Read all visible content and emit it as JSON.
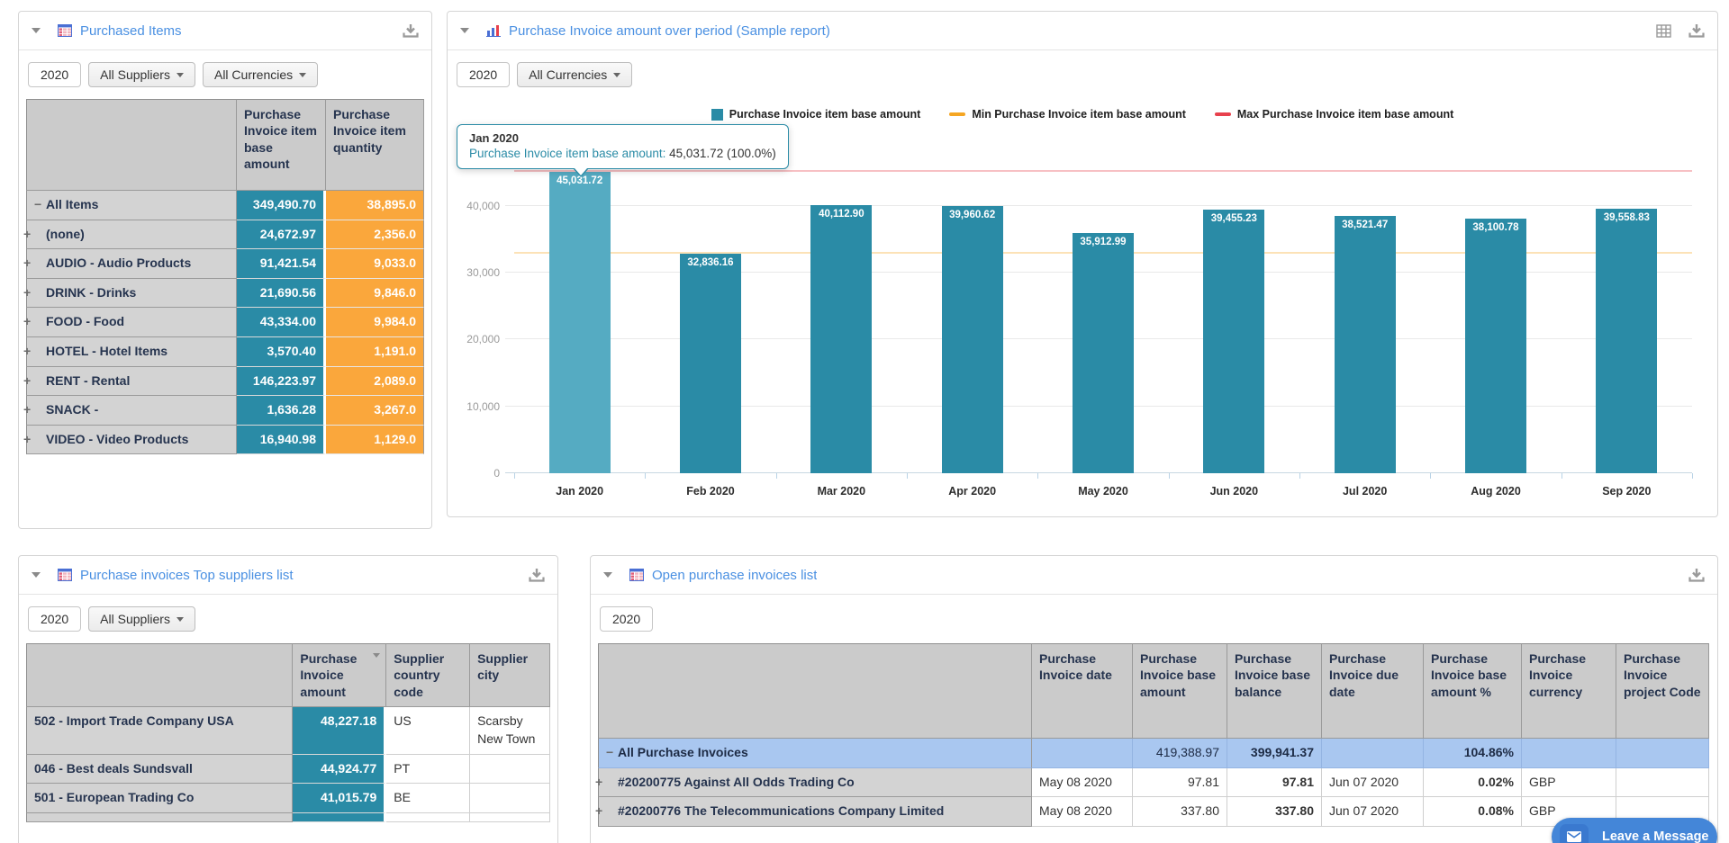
{
  "colors": {
    "accent_blue": "#4a90e2",
    "teal": "#2a8ba6",
    "teal_highlight": "#55abc2",
    "orange": "#faa73c",
    "row_highlight_blue": "#a9c7f0",
    "chat_blue": "#4486d8"
  },
  "purchased_items": {
    "title": "Purchased Items",
    "filters": {
      "year": "2020",
      "suppliers": "All Suppliers",
      "currencies": "All Currencies"
    },
    "columns": [
      "",
      "Purchase Invoice item base amount",
      "Purchase Invoice item quantity"
    ],
    "rows": [
      {
        "expander": "minus",
        "label": "All Items",
        "amount": "349,490.70",
        "quantity": "38,895.0"
      },
      {
        "expander": "plus",
        "label": "(none)",
        "amount": "24,672.97",
        "quantity": "2,356.0"
      },
      {
        "expander": "plus",
        "label": "AUDIO - Audio Products",
        "amount": "91,421.54",
        "quantity": "9,033.0"
      },
      {
        "expander": "plus",
        "label": "DRINK - Drinks",
        "amount": "21,690.56",
        "quantity": "9,846.0"
      },
      {
        "expander": "plus",
        "label": "FOOD - Food",
        "amount": "43,334.00",
        "quantity": "9,984.0"
      },
      {
        "expander": "plus",
        "label": "HOTEL - Hotel Items",
        "amount": "3,570.40",
        "quantity": "1,191.0"
      },
      {
        "expander": "plus",
        "label": "RENT - Rental",
        "amount": "146,223.97",
        "quantity": "2,089.0"
      },
      {
        "expander": "plus",
        "label": "SNACK -",
        "amount": "1,636.28",
        "quantity": "3,267.0"
      },
      {
        "expander": "plus",
        "label": "VIDEO - Video Products",
        "amount": "16,940.98",
        "quantity": "1,129.0"
      }
    ]
  },
  "invoice_chart": {
    "title": "Purchase Invoice amount over period (Sample report)",
    "filters": {
      "year": "2020",
      "currencies": "All Currencies"
    },
    "tooltip": {
      "title": "Jan 2020",
      "label": "Purchase Invoice item base amount:",
      "value": "45,031.72 (100.0%)"
    }
  },
  "chart_data": {
    "type": "bar",
    "title": "Purchase Invoice amount over period (Sample report)",
    "categories": [
      "Jan 2020",
      "Feb 2020",
      "Mar 2020",
      "Apr 2020",
      "May 2020",
      "Jun 2020",
      "Jul 2020",
      "Aug 2020",
      "Sep 2020"
    ],
    "series": [
      {
        "name": "Purchase Invoice item base amount",
        "type": "bar",
        "color": "#2a8ba6",
        "values": [
          45031.72,
          32836.16,
          40112.9,
          39960.62,
          35912.99,
          39455.23,
          38521.47,
          38100.78,
          39558.83
        ]
      },
      {
        "name": "Min Purchase Invoice item base amount",
        "type": "line",
        "color": "#f5a623",
        "value": 32836.16
      },
      {
        "name": "Max Purchase Invoice item base amount",
        "type": "line",
        "color": "#e8414d",
        "value": 45031.72
      }
    ],
    "bar_labels": [
      "45,031.72",
      "32,836.16",
      "40,112.90",
      "39,960.62",
      "35,912.99",
      "39,455.23",
      "38,521.47",
      "38,100.78",
      "39,558.83"
    ],
    "highlighted_bar_index": 0,
    "ylim": [
      0,
      45600
    ],
    "yticks": [
      0,
      10000,
      20000,
      30000,
      40000
    ],
    "ytick_labels": [
      "0",
      "10,000",
      "20,000",
      "30,000",
      "40,000"
    ],
    "grid": true,
    "legend_position": "top"
  },
  "top_suppliers": {
    "title": "Purchase invoices Top suppliers list",
    "filters": {
      "year": "2020",
      "suppliers": "All Suppliers"
    },
    "columns": [
      "",
      "Purchase Invoice amount",
      "Supplier country code",
      "Supplier city"
    ],
    "sorted_col_index": 1,
    "rows": [
      {
        "label": "502 - Import Trade Company USA",
        "amount": "48,227.18",
        "country": "US",
        "city": "Scarsby New Town"
      },
      {
        "label": "046 - Best deals Sundsvall",
        "amount": "44,924.77",
        "country": "PT",
        "city": ""
      },
      {
        "label": "501 - European Trading Co",
        "amount": "41,015.79",
        "country": "BE",
        "city": ""
      }
    ]
  },
  "open_invoices": {
    "title": "Open purchase invoices list",
    "filters": {
      "year": "2020"
    },
    "columns": [
      "",
      "Purchase Invoice date",
      "Purchase Invoice base amount",
      "Purchase Invoice base balance",
      "Purchase Invoice due date",
      "Purchase Invoice base amount %",
      "Purchase Invoice currency",
      "Purchase Invoice project Code"
    ],
    "rows": [
      {
        "expander": "minus",
        "label": "All Purchase Invoices",
        "highlight": true,
        "date": "",
        "base_amount": "419,388.97",
        "base_balance": "399,941.37",
        "due_date": "",
        "base_amount_pct": "104.86%",
        "currency": "",
        "project_code": ""
      },
      {
        "expander": "plus",
        "label": "#20200775 Against All Odds Trading Co",
        "date": "May 08 2020",
        "base_amount": "97.81",
        "base_balance": "97.81",
        "due_date": "Jun 07 2020",
        "base_amount_pct": "0.02%",
        "currency": "GBP",
        "project_code": ""
      },
      {
        "expander": "plus",
        "label": "#20200776 The Telecommunications Company Limited",
        "date": "May 08 2020",
        "base_amount": "337.80",
        "base_balance": "337.80",
        "due_date": "Jun 07 2020",
        "base_amount_pct": "0.08%",
        "currency": "GBP",
        "project_code": ""
      }
    ]
  },
  "chat_button": {
    "label": "Leave a Message"
  }
}
